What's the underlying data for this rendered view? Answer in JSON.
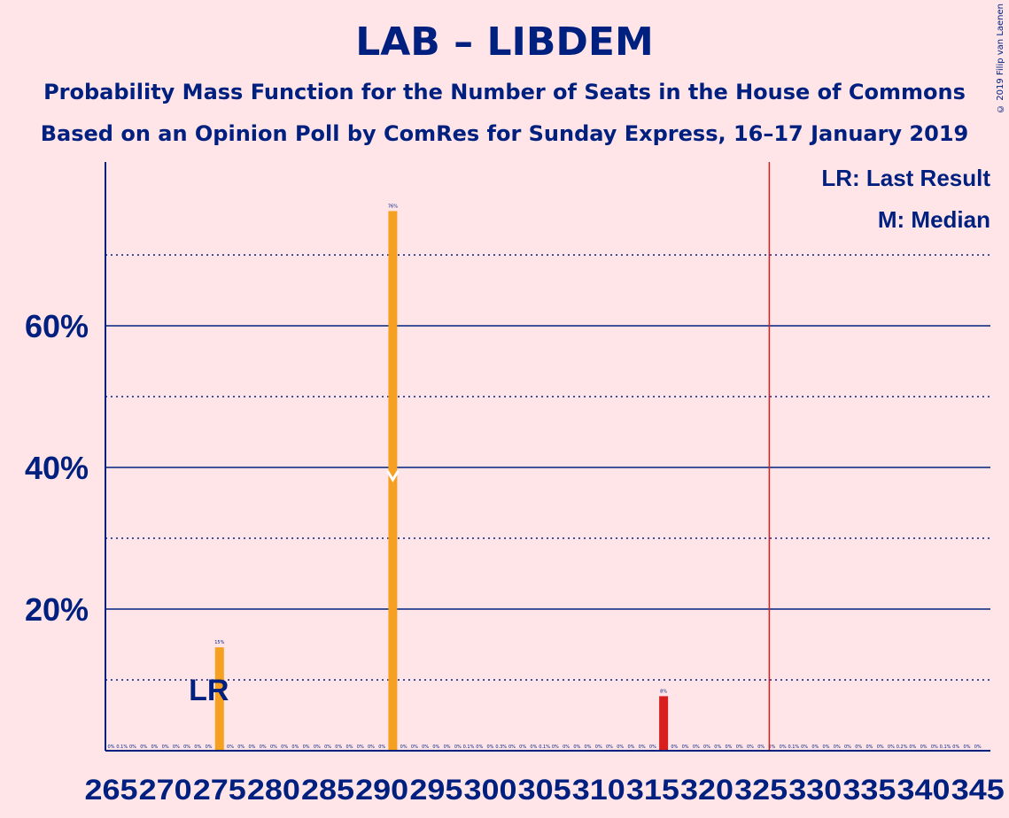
{
  "title": "LAB – LIBDEM",
  "subtitle": "Probability Mass Function for the Number of Seats in the House of Commons",
  "subtitle2": "Based on an Opinion Poll by ComRes for Sunday Express, 16–17 January 2019",
  "copyright": "© 2019 Filip van Laenen",
  "legend": {
    "last_result": "LR: Last Result",
    "median": "M: Median"
  },
  "chart_data": {
    "type": "bar",
    "title": "LAB – LIBDEM",
    "xlabel": "",
    "ylabel": "",
    "x_ticks": [
      "265",
      "270",
      "275",
      "280",
      "285",
      "290",
      "295",
      "300",
      "305",
      "310",
      "315",
      "320",
      "325",
      "330",
      "335",
      "340",
      "345"
    ],
    "y_ticks": [
      "20%",
      "40%",
      "60%"
    ],
    "ylim": [
      0,
      83
    ],
    "xlim": [
      265,
      345
    ],
    "majority_line": 326,
    "last_result": 275,
    "last_result_label": "LR",
    "median": 291,
    "median_label": "M",
    "x": [
      265,
      266,
      267,
      268,
      269,
      270,
      271,
      272,
      273,
      274,
      275,
      276,
      277,
      278,
      279,
      280,
      281,
      282,
      283,
      284,
      285,
      286,
      287,
      288,
      289,
      290,
      291,
      292,
      293,
      294,
      295,
      296,
      297,
      298,
      299,
      300,
      301,
      302,
      303,
      304,
      305,
      306,
      307,
      308,
      309,
      310,
      311,
      312,
      313,
      314,
      315,
      316,
      317,
      318,
      319,
      320,
      321,
      322,
      323,
      324,
      325,
      326,
      327,
      328,
      329,
      330,
      331,
      332,
      333,
      334,
      335,
      336,
      337,
      338,
      339,
      340,
      341,
      342,
      343,
      344,
      345
    ],
    "values": [
      0,
      0.1,
      0,
      0,
      0,
      0,
      0,
      0,
      0,
      0,
      14.6,
      0,
      0,
      0,
      0,
      0,
      0,
      0,
      0,
      0,
      0,
      0,
      0,
      0,
      0,
      0,
      76.2,
      0,
      0,
      0,
      0,
      0,
      0,
      0.1,
      0,
      0,
      0.3,
      0,
      0,
      0,
      0.1,
      0,
      0,
      0,
      0,
      0,
      0,
      0,
      0,
      0,
      0,
      7.7,
      0,
      0,
      0,
      0,
      0,
      0,
      0,
      0,
      0,
      0,
      0,
      0.1,
      0,
      0,
      0,
      0,
      0,
      0,
      0,
      0,
      0,
      0.2,
      0,
      0,
      0,
      0.1,
      0,
      0,
      0
    ],
    "labels": [
      "0%",
      "0.1%",
      "0%",
      "0%",
      "0%",
      "0%",
      "0%",
      "0%",
      "0%",
      "0%",
      "15%",
      "0%",
      "0%",
      "0%",
      "0%",
      "0%",
      "0%",
      "0%",
      "0%",
      "0%",
      "0%",
      "0%",
      "0%",
      "0%",
      "0%",
      "0%",
      "76%",
      "0%",
      "0%",
      "0%",
      "0%",
      "0%",
      "0%",
      "0.1%",
      "0%",
      "0%",
      "0.3%",
      "0%",
      "0%",
      "0%",
      "0.1%",
      "0%",
      "0%",
      "0%",
      "0%",
      "0%",
      "0%",
      "0%",
      "0%",
      "0%",
      "0%",
      "8%",
      "0%",
      "0%",
      "0%",
      "0%",
      "0%",
      "0%",
      "0%",
      "0%",
      "0%",
      "0%",
      "0%",
      "0.1%",
      "0%",
      "0%",
      "0%",
      "0%",
      "0%",
      "0%",
      "0%",
      "0%",
      "0%",
      "0.2%",
      "0%",
      "0%",
      "0%",
      "0.1%",
      "0%",
      "0%",
      "0%"
    ],
    "highlight_x": 316,
    "colors": {
      "bar": "#F5A020",
      "highlight_bar": "#D81E1E",
      "majority_line": "#D81E1E",
      "axis": "#002080",
      "background": "#FFE5E8",
      "median_marker": "#FFFFFF"
    }
  }
}
